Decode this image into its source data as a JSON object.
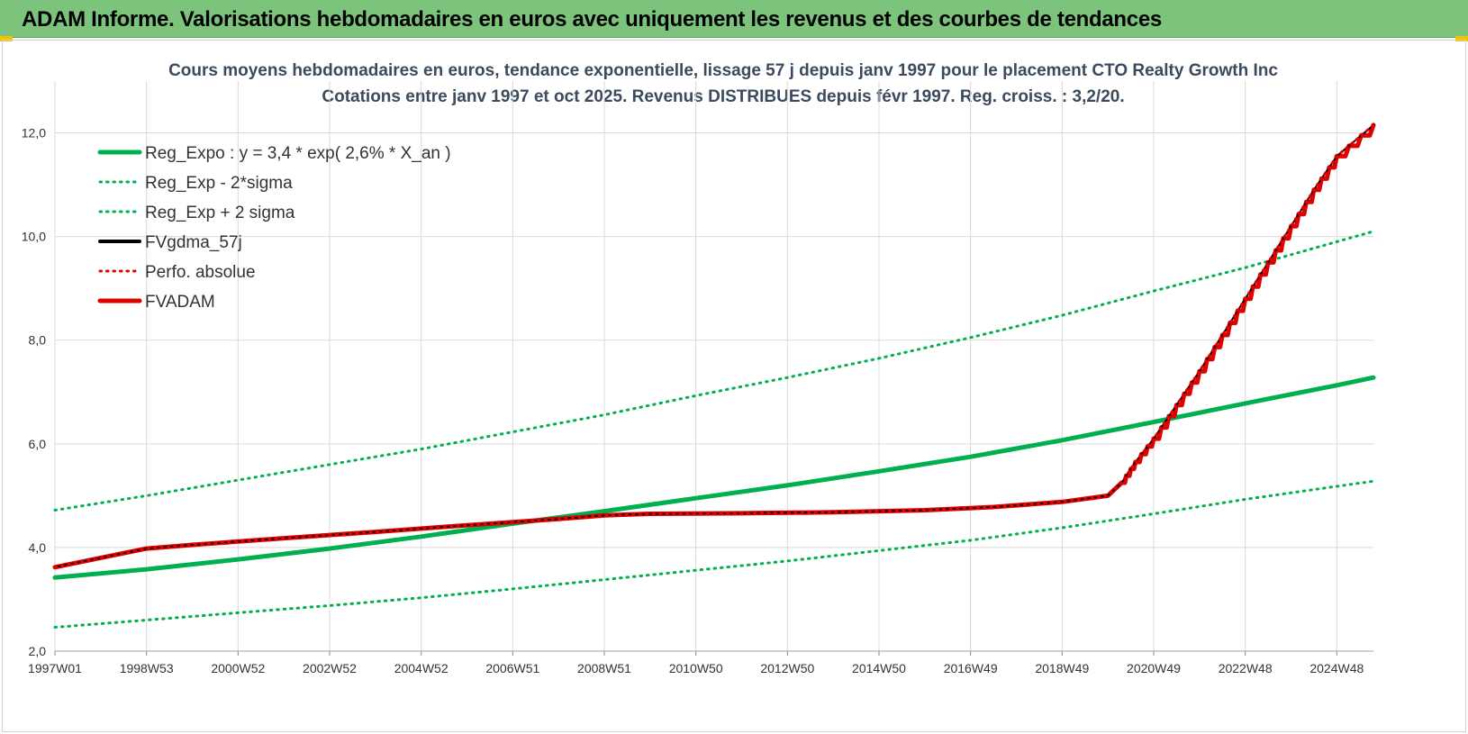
{
  "header": {
    "title": "ADAM Informe. Valorisations hebdomadaires en euros avec uniquement les revenus et des courbes de tendances"
  },
  "colors": {
    "header_bg": "#7cc47c",
    "reg_green": "#00b050",
    "fv_black": "#000000",
    "adam_red": "#e00000"
  },
  "chart_data": {
    "type": "line",
    "title": "Cours moyens hebdomadaires en euros, tendance exponentielle, lissage 57 j depuis janv 1997 pour le placement CTO Realty Growth Inc",
    "subtitle": "Cotations entre janv 1997 et oct 2025. Revenus DISTRIBUES depuis févr 1997. Reg. croiss. : 3,2/20.",
    "xlabel": "",
    "ylabel": "",
    "xlim": [
      1997.0,
      2025.8
    ],
    "ylim": [
      2.0,
      13.0
    ],
    "y_ticks": [
      2.0,
      4.0,
      6.0,
      8.0,
      10.0,
      12.0
    ],
    "y_tick_labels": [
      "2,0",
      "4,0",
      "6,0",
      "8,0",
      "10,0",
      "12,0"
    ],
    "x_ticks": [
      1997.0,
      1999.0,
      2001.0,
      2003.0,
      2005.0,
      2007.0,
      2009.0,
      2011.0,
      2013.0,
      2015.0,
      2017.0,
      2019.0,
      2021.0,
      2023.0,
      2025.0
    ],
    "x_tick_labels": [
      "1997W01",
      "1998W53",
      "2000W52",
      "2002W52",
      "2004W52",
      "2006W51",
      "2008W51",
      "2010W50",
      "2012W50",
      "2014W50",
      "2016W49",
      "2018W49",
      "2020W49",
      "2022W48",
      "2024W48"
    ],
    "grid": true,
    "legend_position": "top-left",
    "series": [
      {
        "name": "Reg_Expo : y = 3,4 * exp( 2,6% *  X_an )",
        "style": "solid",
        "color": "#00b050",
        "x": [
          1997.0,
          1999.0,
          2001.0,
          2003.0,
          2005.0,
          2007.0,
          2009.0,
          2011.0,
          2013.0,
          2015.0,
          2017.0,
          2019.0,
          2021.0,
          2023.0,
          2025.0,
          2025.8
        ],
        "y": [
          3.42,
          3.58,
          3.77,
          3.98,
          4.21,
          4.46,
          4.7,
          4.95,
          5.2,
          5.47,
          5.75,
          6.07,
          6.42,
          6.78,
          7.13,
          7.28
        ]
      },
      {
        "name": "Reg_Exp - 2*sigma",
        "style": "dotted",
        "color": "#00b050",
        "x": [
          1997.0,
          1999.0,
          2001.0,
          2003.0,
          2005.0,
          2007.0,
          2009.0,
          2011.0,
          2013.0,
          2015.0,
          2017.0,
          2019.0,
          2021.0,
          2023.0,
          2025.0,
          2025.8
        ],
        "y": [
          2.46,
          2.6,
          2.74,
          2.88,
          3.03,
          3.2,
          3.38,
          3.56,
          3.74,
          3.94,
          4.14,
          4.38,
          4.65,
          4.93,
          5.18,
          5.28
        ]
      },
      {
        "name": "Reg_Exp + 2 sigma",
        "style": "dotted",
        "color": "#00b050",
        "x": [
          1997.0,
          1999.0,
          2001.0,
          2003.0,
          2005.0,
          2007.0,
          2009.0,
          2011.0,
          2013.0,
          2015.0,
          2017.0,
          2019.0,
          2021.0,
          2023.0,
          2025.0,
          2025.8
        ],
        "y": [
          4.72,
          5.0,
          5.3,
          5.6,
          5.9,
          6.23,
          6.56,
          6.93,
          7.28,
          7.65,
          8.05,
          8.48,
          8.95,
          9.4,
          9.9,
          10.1
        ]
      },
      {
        "name": "FVgdma_57j",
        "style": "solid",
        "color": "#000000",
        "x": [
          1997.0,
          1998.0,
          1999.0,
          2000.0,
          2002.0,
          2004.0,
          2006.0,
          2008.0,
          2009.0,
          2010.0,
          2012.0,
          2014.0,
          2016.0,
          2017.5,
          2019.0,
          2020.0,
          2020.3,
          2020.6,
          2021.0,
          2021.5,
          2022.0,
          2022.5,
          2023.0,
          2023.5,
          2024.0,
          2024.5,
          2025.0,
          2025.8
        ],
        "y": [
          3.62,
          3.8,
          3.98,
          4.05,
          4.18,
          4.3,
          4.43,
          4.55,
          4.62,
          4.65,
          4.66,
          4.68,
          4.72,
          4.78,
          4.88,
          5.0,
          5.25,
          5.65,
          6.1,
          6.75,
          7.4,
          8.1,
          8.8,
          9.5,
          10.2,
          10.9,
          11.55,
          12.15
        ]
      },
      {
        "name": "Perfo. absolue",
        "style": "dotted",
        "color": "#e00000",
        "x": [
          1997.0,
          1998.0,
          1999.0,
          2000.0,
          2002.0,
          2004.0,
          2006.0,
          2008.0,
          2009.0,
          2010.0,
          2012.0,
          2014.0,
          2016.0,
          2017.5,
          2019.0,
          2020.0,
          2020.3,
          2020.6,
          2021.0,
          2021.5,
          2022.0,
          2022.5,
          2023.0,
          2023.5,
          2024.0,
          2024.5,
          2025.0,
          2025.8
        ],
        "y": [
          3.62,
          3.8,
          3.98,
          4.05,
          4.18,
          4.3,
          4.43,
          4.55,
          4.62,
          4.65,
          4.66,
          4.68,
          4.72,
          4.78,
          4.88,
          5.0,
          5.25,
          5.65,
          6.1,
          6.75,
          7.4,
          8.1,
          8.8,
          9.5,
          10.2,
          10.9,
          11.55,
          12.15
        ]
      },
      {
        "name": "FVADAM",
        "style": "solid-thick-stepped",
        "color": "#e00000",
        "x": [
          1997.0,
          1998.0,
          1999.0,
          2000.0,
          2002.0,
          2004.0,
          2006.0,
          2008.0,
          2009.0,
          2010.0,
          2012.0,
          2014.0,
          2016.0,
          2017.5,
          2019.0,
          2020.0,
          2020.3,
          2020.6,
          2021.0,
          2021.5,
          2022.0,
          2022.5,
          2023.0,
          2023.5,
          2024.0,
          2024.5,
          2025.0,
          2025.8
        ],
        "y": [
          3.62,
          3.8,
          3.98,
          4.05,
          4.18,
          4.3,
          4.43,
          4.55,
          4.62,
          4.65,
          4.66,
          4.68,
          4.72,
          4.78,
          4.88,
          5.0,
          5.25,
          5.65,
          6.1,
          6.75,
          7.4,
          8.1,
          8.8,
          9.5,
          10.2,
          10.9,
          11.55,
          12.15
        ]
      }
    ]
  }
}
